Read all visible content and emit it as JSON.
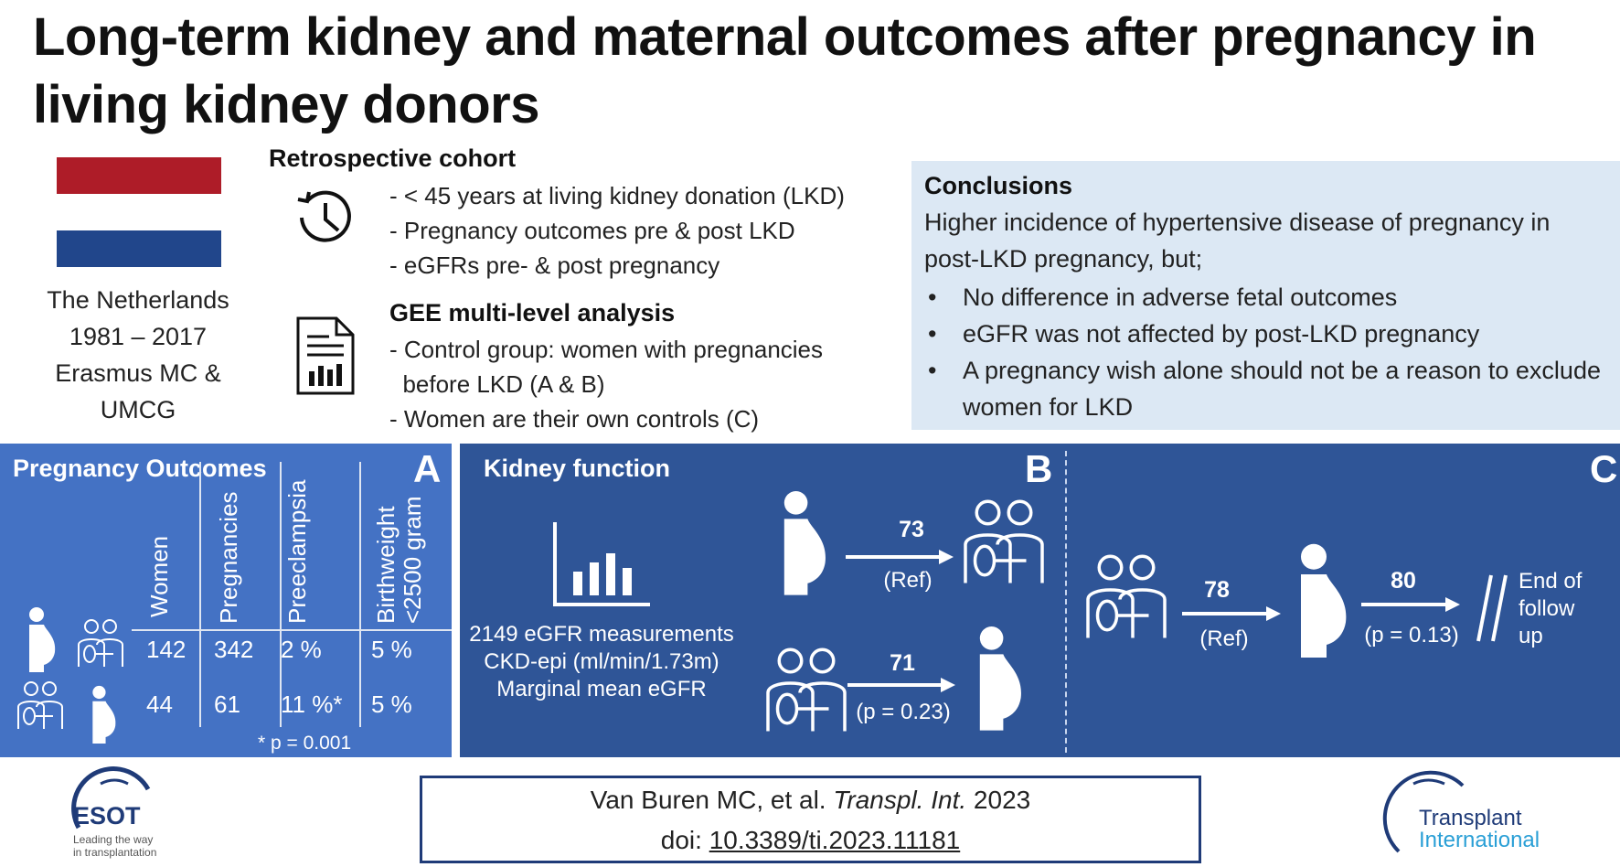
{
  "title": "Long-term kidney and maternal outcomes after pregnancy in living kidney donors",
  "country": {
    "name": "The Netherlands",
    "years": "1981 – 2017",
    "centers_line1": "Erasmus MC &",
    "centers_line2": "UMCG",
    "flag_colors": [
      "#ae1c28",
      "#ffffff",
      "#21468b"
    ]
  },
  "methods": {
    "retro_head": "Retrospective cohort",
    "retro_items": [
      "- < 45 years at living kidney donation (LKD)",
      "- Pregnancy outcomes pre & post LKD",
      "- eGFRs pre- & post pregnancy"
    ],
    "gee_head": "GEE multi-level analysis",
    "gee_items": [
      "- Control group: women with pregnancies",
      "  before LKD (A & B)",
      "- Women are their own controls (C)"
    ]
  },
  "conclusions": {
    "head": "Conclusions",
    "intro": "Higher incidence of hypertensive disease of pregnancy in post-LKD pregnancy, but;",
    "items": [
      "No difference in adverse fetal outcomes",
      "eGFR was not affected by post-LKD pregnancy",
      "A pregnancy wish alone should not be a reason to exclude women for LKD"
    ]
  },
  "panel_a": {
    "title": "Pregnancy Outcomes",
    "letter": "A",
    "columns": [
      "Women",
      "Pregnancies",
      "Preeclampsia",
      "Birthweight",
      "<2500 gram"
    ],
    "row1": [
      "142",
      "342",
      "2 %",
      "5 %"
    ],
    "row2": [
      "44",
      "61",
      "11 %*",
      "5 %"
    ],
    "footnote": "* p = 0.001"
  },
  "panel_b": {
    "title": "Kidney function",
    "letter": "B",
    "measure_lines": [
      "2149 eGFR measurements",
      "CKD-epi (ml/min/1.73m)",
      "Marginal mean eGFR"
    ],
    "top_value": "73",
    "top_ref": "(Ref)",
    "bottom_value": "71",
    "bottom_p": "(p = 0.23)"
  },
  "panel_c": {
    "letter": "C",
    "first_value": "78",
    "first_ref": "(Ref)",
    "second_value": "80",
    "second_p": "(p = 0.13)",
    "end_lines": [
      "End of",
      "follow",
      "up"
    ]
  },
  "citation": {
    "authors": "Van Buren MC, et al.",
    "journal": "Transpl.  Int.",
    "year": "2023",
    "doi_label": "doi:",
    "doi": "10.3389/ti.2023.11181"
  },
  "logos": {
    "esot_name": "ESOT",
    "esot_tag1": "Leading the way",
    "esot_tag2": "in transplantation",
    "ti_line1": "Transplant",
    "ti_line2": "International"
  }
}
